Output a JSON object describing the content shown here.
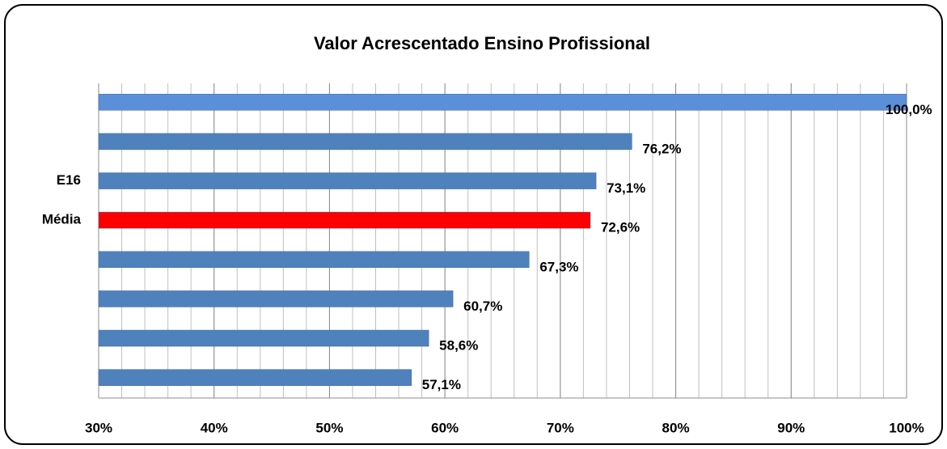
{
  "chart_data": {
    "type": "hbar",
    "title": "Valor Acrescentado Ensino Profissional",
    "categories": [
      null,
      null,
      "E16",
      "Média",
      null,
      null,
      null,
      null
    ],
    "values": [
      100.0,
      76.2,
      73.1,
      72.6,
      67.3,
      60.7,
      58.6,
      57.1
    ],
    "value_labels": [
      "100,0%",
      "76,2%",
      "73,1%",
      "72,6%",
      "67,3%",
      "60,7%",
      "58,6%",
      "57,1%"
    ],
    "colors": [
      "#5b8fd8",
      "#4f81bd",
      "#4f81bd",
      "#ff0000",
      "#4f81bd",
      "#4f81bd",
      "#4f81bd",
      "#4f81bd"
    ],
    "xlim": [
      30,
      100
    ],
    "xticks": [
      {
        "value": 30,
        "label": "30%"
      },
      {
        "value": 40,
        "label": "40%"
      },
      {
        "value": 50,
        "label": "50%"
      },
      {
        "value": 60,
        "label": "60%"
      },
      {
        "value": 70,
        "label": "70%"
      },
      {
        "value": 80,
        "label": "80%"
      },
      {
        "value": 90,
        "label": "90%"
      },
      {
        "value": 100,
        "label": "100%"
      }
    ],
    "grid": true,
    "minor_grid_step": 2
  }
}
